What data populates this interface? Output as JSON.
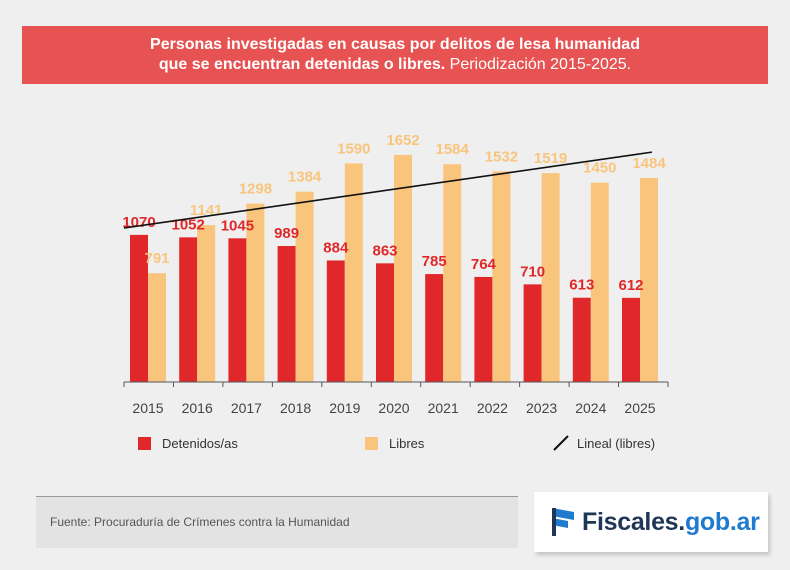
{
  "title": {
    "line1": "Personas investigadas en causas por delitos de lesa humanidad",
    "line2_bold": "que se encuentran detenidas o libres.",
    "line2_light": "Periodización 2015-2025."
  },
  "chart_data": {
    "type": "bar",
    "categories": [
      "2015",
      "2016",
      "2017",
      "2018",
      "2019",
      "2020",
      "2021",
      "2022",
      "2023",
      "2024",
      "2025"
    ],
    "series": [
      {
        "name": "Detenidos/as",
        "color": "#e0282a",
        "values": [
          1070,
          1052,
          1045,
          989,
          884,
          863,
          785,
          764,
          710,
          613,
          612
        ]
      },
      {
        "name": "Libres",
        "color": "#f9c57d",
        "values": [
          791,
          1141,
          1298,
          1384,
          1590,
          1652,
          1584,
          1532,
          1519,
          1450,
          1484
        ]
      }
    ],
    "trendline": {
      "name": "Lineal (libres)",
      "color": "#111111"
    },
    "ylim": [
      0,
      1800
    ],
    "grid": false,
    "legend_position": "bottom"
  },
  "legend": {
    "detenidos": "Detenidos/as",
    "libres": "Libres",
    "lineal": "Lineal (libres)"
  },
  "source": "Fuente: Procuraduría de Crímenes contra la Humanidad",
  "logo": {
    "part1": "Fiscales.",
    "part2": "gob.ar",
    "icon": "flag-icon"
  }
}
